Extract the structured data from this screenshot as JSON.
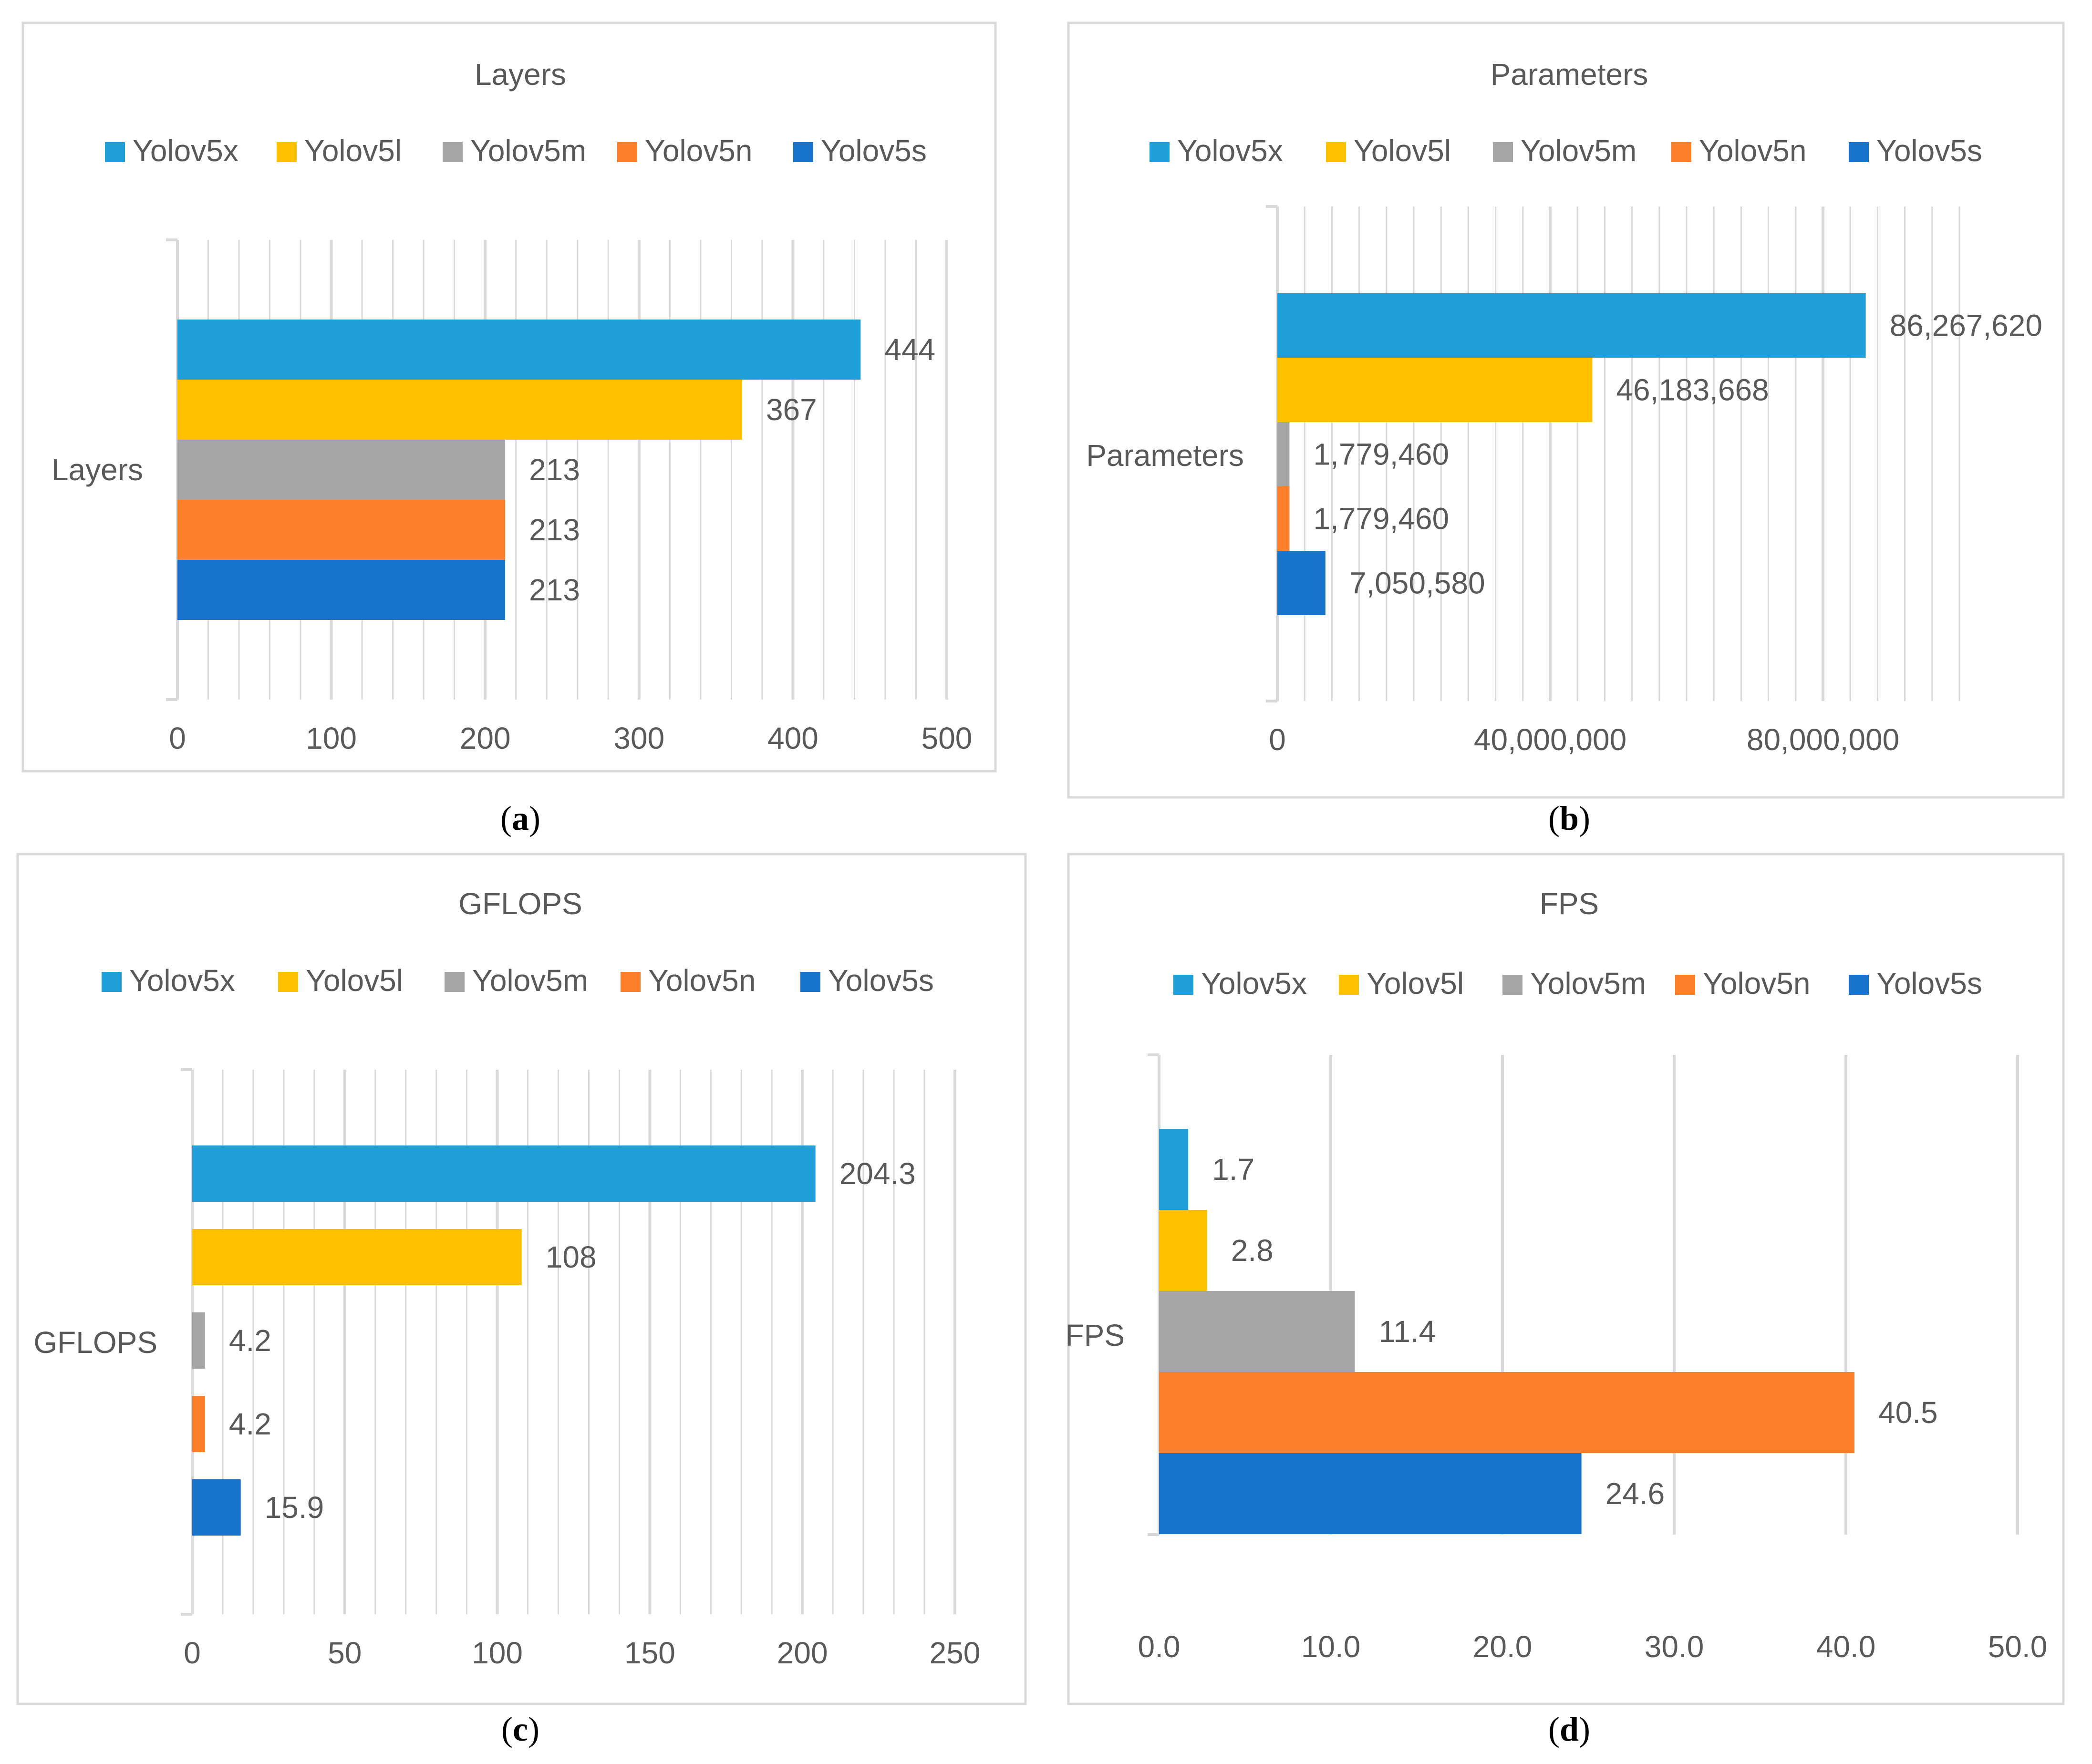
{
  "colors": {
    "Yolov5x": "#1f9fda",
    "Yolov5l": "#ffc000",
    "Yolov5m": "#a5a5a5",
    "Yolov5n": "#fd7f2a",
    "Yolov5s": "#1873cc",
    "text": "#595959",
    "grid": "#d9d9d9",
    "frame": "#d9d9d9"
  },
  "chart_data": [
    {
      "type": "bar",
      "orientation": "horizontal",
      "title": "Layers",
      "caption_label": "a",
      "legend_position": "top",
      "categories": [
        "Layers"
      ],
      "series": [
        {
          "name": "Yolov5x",
          "values": [
            444
          ],
          "label": "444"
        },
        {
          "name": "Yolov5l",
          "values": [
            367
          ],
          "label": "367"
        },
        {
          "name": "Yolov5m",
          "values": [
            213
          ],
          "label": "213"
        },
        {
          "name": "Yolov5n",
          "values": [
            213
          ],
          "label": "213"
        },
        {
          "name": "Yolov5s",
          "values": [
            213
          ],
          "label": "213"
        }
      ],
      "xlim": [
        0,
        500
      ],
      "ticks": [
        0,
        100,
        200,
        300,
        400,
        500
      ],
      "tick_labels": [
        "0",
        "100",
        "200",
        "300",
        "400",
        "500"
      ],
      "minor_divisions": 5,
      "xlabel": "",
      "ylabel": ""
    },
    {
      "type": "bar",
      "orientation": "horizontal",
      "title": "Parameters",
      "caption_label": "b",
      "legend_position": "top",
      "categories": [
        "Parameters"
      ],
      "series": [
        {
          "name": "Yolov5x",
          "values": [
            86267620
          ],
          "label": "86,267,620"
        },
        {
          "name": "Yolov5l",
          "values": [
            46183668
          ],
          "label": "46,183,668"
        },
        {
          "name": "Yolov5m",
          "values": [
            1779460
          ],
          "label": "1,779,460"
        },
        {
          "name": "Yolov5n",
          "values": [
            1779460
          ],
          "label": "1,779,460"
        },
        {
          "name": "Yolov5s",
          "values": [
            7050580
          ],
          "label": "7,050,580"
        }
      ],
      "xlim": [
        0,
        100000000
      ],
      "ticks": [
        0,
        40000000,
        80000000
      ],
      "tick_labels": [
        "0",
        "40,000,000",
        "80,000,000"
      ],
      "minor_divisions": 10,
      "xlabel": "",
      "ylabel": ""
    },
    {
      "type": "bar",
      "orientation": "horizontal",
      "title": "GFLOPS",
      "caption_label": "c",
      "legend_position": "top",
      "categories": [
        "GFLOPS"
      ],
      "series": [
        {
          "name": "Yolov5x",
          "values": [
            204.3
          ],
          "label": "204.3"
        },
        {
          "name": "Yolov5l",
          "values": [
            108
          ],
          "label": "108"
        },
        {
          "name": "Yolov5m",
          "values": [
            4.2
          ],
          "label": "4.2"
        },
        {
          "name": "Yolov5n",
          "values": [
            4.2
          ],
          "label": "4.2"
        },
        {
          "name": "Yolov5s",
          "values": [
            15.9
          ],
          "label": "15.9"
        }
      ],
      "xlim": [
        0,
        250
      ],
      "ticks": [
        0,
        50,
        100,
        150,
        200,
        250
      ],
      "tick_labels": [
        "0",
        "50",
        "100",
        "150",
        "200",
        "250"
      ],
      "minor_divisions": 5,
      "xlabel": "",
      "ylabel": ""
    },
    {
      "type": "bar",
      "orientation": "horizontal",
      "title": "FPS",
      "caption_label": "d",
      "legend_position": "top",
      "categories": [
        "FPS"
      ],
      "series": [
        {
          "name": "Yolov5x",
          "values": [
            1.7
          ],
          "label": "1.7"
        },
        {
          "name": "Yolov5l",
          "values": [
            2.8
          ],
          "label": "2.8"
        },
        {
          "name": "Yolov5m",
          "values": [
            11.4
          ],
          "label": "11.4"
        },
        {
          "name": "Yolov5n",
          "values": [
            40.5
          ],
          "label": "40.5"
        },
        {
          "name": "Yolov5s",
          "values": [
            24.6
          ],
          "label": "24.6"
        }
      ],
      "xlim": [
        0,
        50
      ],
      "ticks": [
        0,
        10,
        20,
        30,
        40,
        50
      ],
      "tick_labels": [
        "0.0",
        "10.0",
        "20.0",
        "30.0",
        "40.0",
        "50.0"
      ],
      "minor_divisions": 1,
      "xlabel": "",
      "ylabel": ""
    }
  ]
}
